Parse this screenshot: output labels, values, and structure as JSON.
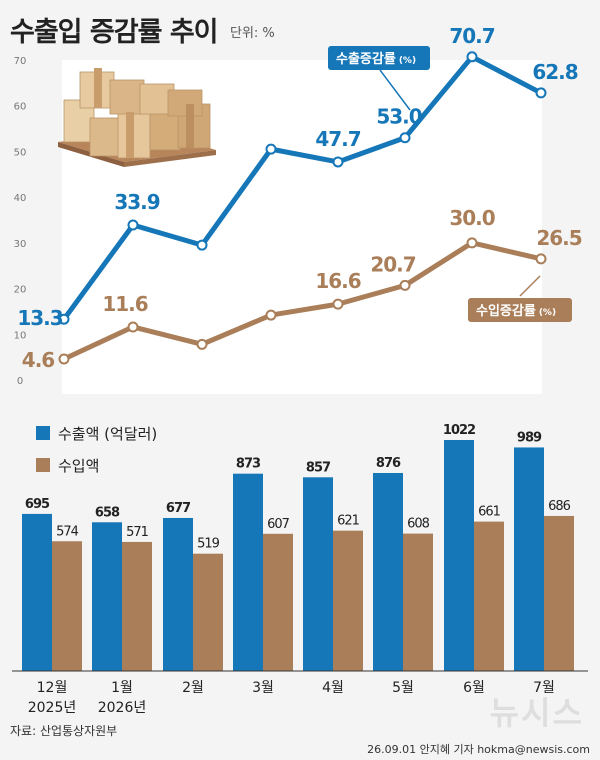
{
  "title": "수출입 증감률 추이",
  "unit": "단위: %",
  "source": "자료: 산업통상자원부",
  "credit": "26.09.01 안지혜 기자 hokma@newsis.com",
  "logo_text": "뉴시스",
  "colors": {
    "export": "#1576b8",
    "import": "#a97e58",
    "panel": "#ffffff",
    "background": "#f4f4f4"
  },
  "icon": "cardboard-boxes-on-pallet-icon",
  "chart_data": [
    {
      "type": "line",
      "categories": [
        "12월",
        "1월",
        "2월",
        "3월",
        "4월",
        "5월",
        "6월",
        "7월"
      ],
      "ylim": [
        0,
        70
      ],
      "yticks": [
        0,
        10,
        20,
        30,
        40,
        50,
        60,
        70
      ],
      "grid": false,
      "series": [
        {
          "name": "수출증감률",
          "unit": "(%)",
          "values": [
            13.3,
            33.9,
            29.5,
            50.5,
            47.7,
            53.0,
            70.7,
            62.8
          ],
          "labels": [
            "13.3",
            "33.9",
            "",
            "",
            "47.7",
            "53.0",
            "70.7",
            "62.8"
          ]
        },
        {
          "name": "수입증감률",
          "unit": "(%)",
          "values": [
            4.6,
            11.6,
            7.8,
            14.2,
            16.6,
            20.7,
            30.0,
            26.5
          ],
          "labels": [
            "4.6",
            "11.6",
            "",
            "",
            "16.6",
            "20.7",
            "30.0",
            "26.5"
          ]
        }
      ]
    },
    {
      "type": "bar",
      "categories": [
        "12월",
        "1월",
        "2월",
        "3월",
        "4월",
        "5월",
        "6월",
        "7월"
      ],
      "sublabels": [
        "2025년",
        "2026년",
        "",
        "",
        "",
        "",
        "",
        ""
      ],
      "series": [
        {
          "name": "수출액 (억달러)",
          "values": [
            695,
            658,
            677,
            873,
            857,
            876,
            1022,
            989
          ]
        },
        {
          "name": "수입액",
          "values": [
            574,
            571,
            519,
            607,
            621,
            608,
            661,
            686
          ]
        }
      ]
    }
  ]
}
